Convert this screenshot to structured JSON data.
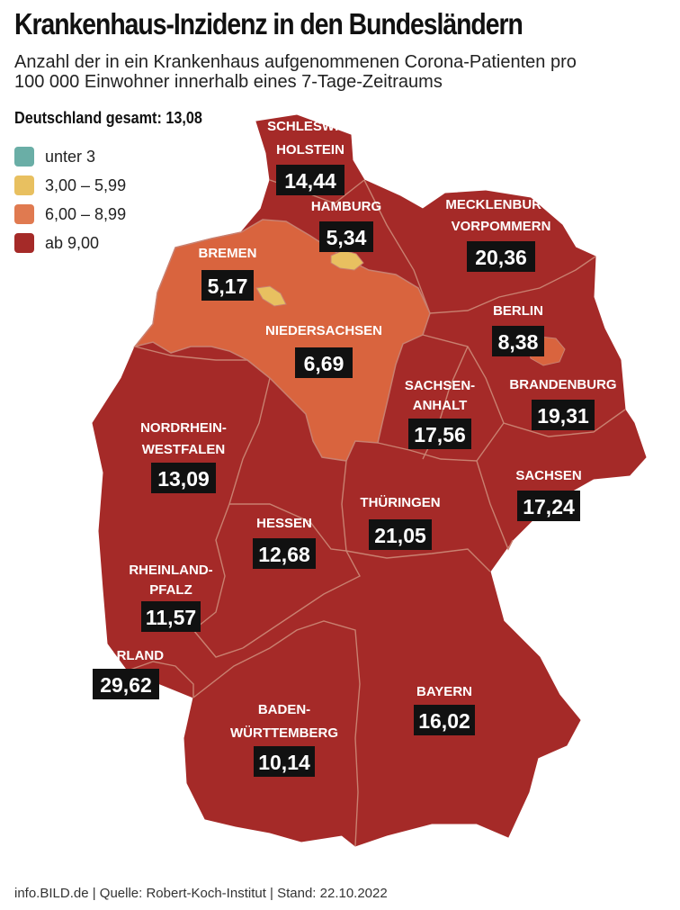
{
  "title": "Krankenhaus-Inzidenz in den Bundesländern",
  "subtitle": "Anzahl der in ein Krankenhaus aufgenommenen Corona-Patienten pro 100 000 Einwohner innerhalb eines 7-Tage-Zeitraums",
  "total": "Deutschland gesamt: 13,08",
  "legend": [
    {
      "label": "unter 3",
      "color": "#6aaea6"
    },
    {
      "label": "3,00 – 5,99",
      "color": "#e8c060"
    },
    {
      "label": "6,00 – 8,99",
      "color": "#e07a50"
    },
    {
      "label": "ab 9,00",
      "color": "#a52a28"
    }
  ],
  "colors": {
    "high": "#a52a28",
    "mid": "#d9643e",
    "low": "#e8c060",
    "border": "#c98070",
    "label_box": "#111111"
  },
  "states": [
    {
      "key": "sh",
      "name": [
        "SCHLESWIG-",
        "HOLSTEIN"
      ],
      "value": "14,44"
    },
    {
      "key": "hh",
      "name": [
        "HAMBURG"
      ],
      "value": "5,34"
    },
    {
      "key": "mv",
      "name": [
        "MECKLENBURG-",
        "VORPOMMERN"
      ],
      "value": "20,36"
    },
    {
      "key": "hb",
      "name": [
        "BREMEN"
      ],
      "value": "5,17"
    },
    {
      "key": "ni",
      "name": [
        "NIEDERSACHSEN"
      ],
      "value": "6,69"
    },
    {
      "key": "be",
      "name": [
        "BERLIN"
      ],
      "value": "8,38"
    },
    {
      "key": "bb",
      "name": [
        "BRANDENBURG"
      ],
      "value": "19,31"
    },
    {
      "key": "st",
      "name": [
        "SACHSEN-",
        "ANHALT"
      ],
      "value": "17,56"
    },
    {
      "key": "nw",
      "name": [
        "NORDRHEIN-",
        "WESTFALEN"
      ],
      "value": "13,09"
    },
    {
      "key": "sn",
      "name": [
        "SACHSEN"
      ],
      "value": "17,24"
    },
    {
      "key": "th",
      "name": [
        "THÜRINGEN"
      ],
      "value": "21,05"
    },
    {
      "key": "he",
      "name": [
        "HESSEN"
      ],
      "value": "12,68"
    },
    {
      "key": "rp",
      "name": [
        "RHEINLAND-",
        "PFALZ"
      ],
      "value": "11,57"
    },
    {
      "key": "sl",
      "name": [
        "SAARLAND"
      ],
      "value": "29,62"
    },
    {
      "key": "by",
      "name": [
        "BAYERN"
      ],
      "value": "16,02"
    },
    {
      "key": "bw",
      "name": [
        "BADEN-",
        "WÜRTTEMBERG"
      ],
      "value": "10,14"
    }
  ],
  "footer": "info.BILD.de | Quelle: Robert-Koch-Institut | Stand: 22.10.2022"
}
